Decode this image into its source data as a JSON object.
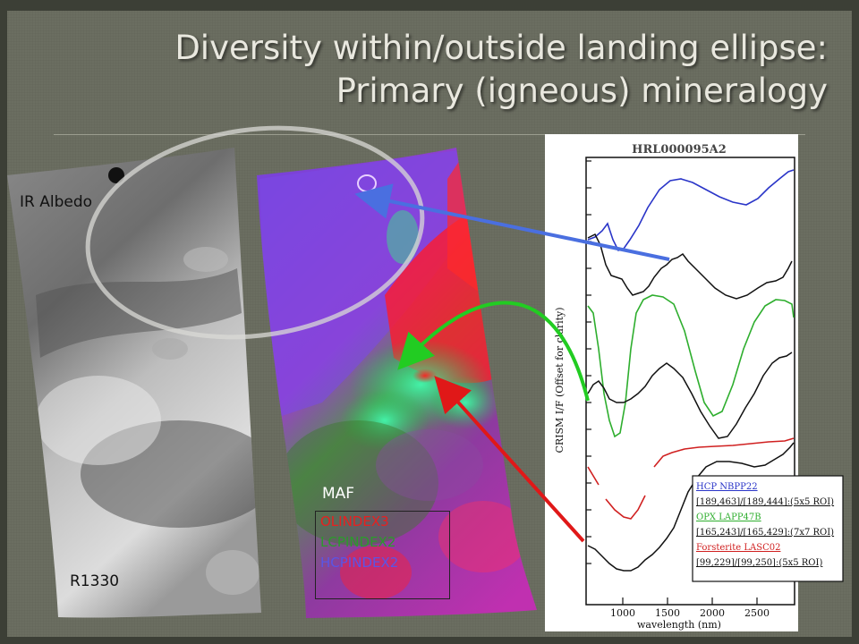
{
  "slide": {
    "title_line1": "Diversity within/outside landing ellipse:",
    "title_line2": "Primary (igneous) mineralogy"
  },
  "images": {
    "ir_label": "IR Albedo",
    "r_label": "R1330",
    "maf_label": "MAF"
  },
  "legend": {
    "items": [
      {
        "text": "OLINDEX3",
        "color": "#e8201f"
      },
      {
        "text": "LCPINDEX2",
        "color": "#2c9a2c"
      },
      {
        "text": "HCPINDEX2",
        "color": "#5a55e6"
      }
    ]
  },
  "spectra": {
    "title": "HRL000095A2",
    "ylabel": "CRISM I/F (Offset for clarity)",
    "xlabel": "wavelength (nm)",
    "xticks": [
      "1000",
      "1500",
      "2000",
      "2500"
    ],
    "key": [
      {
        "text": "HCP NBPP22",
        "color": "#2a35c8",
        "underline": true
      },
      {
        "text": "[189,463]/[189,444]:(5x5 ROI)",
        "color": "#111111",
        "underline": true
      },
      {
        "text": "OPX LAPP47B",
        "color": "#2eae2e",
        "underline": true
      },
      {
        "text": "[165,243]/[165,429]:(7x7 ROI)",
        "color": "#111111",
        "underline": true
      },
      {
        "text": "Forsterite LASC02",
        "color": "#d02020",
        "underline": true
      },
      {
        "text": "[99,229]/[99,250]:(5x5 ROI)",
        "color": "#111111",
        "underline": true
      }
    ]
  },
  "colors": {
    "blue_arrow": "#4a6fe0",
    "green_arrow": "#22cc22",
    "red_arrow": "#e01818"
  }
}
